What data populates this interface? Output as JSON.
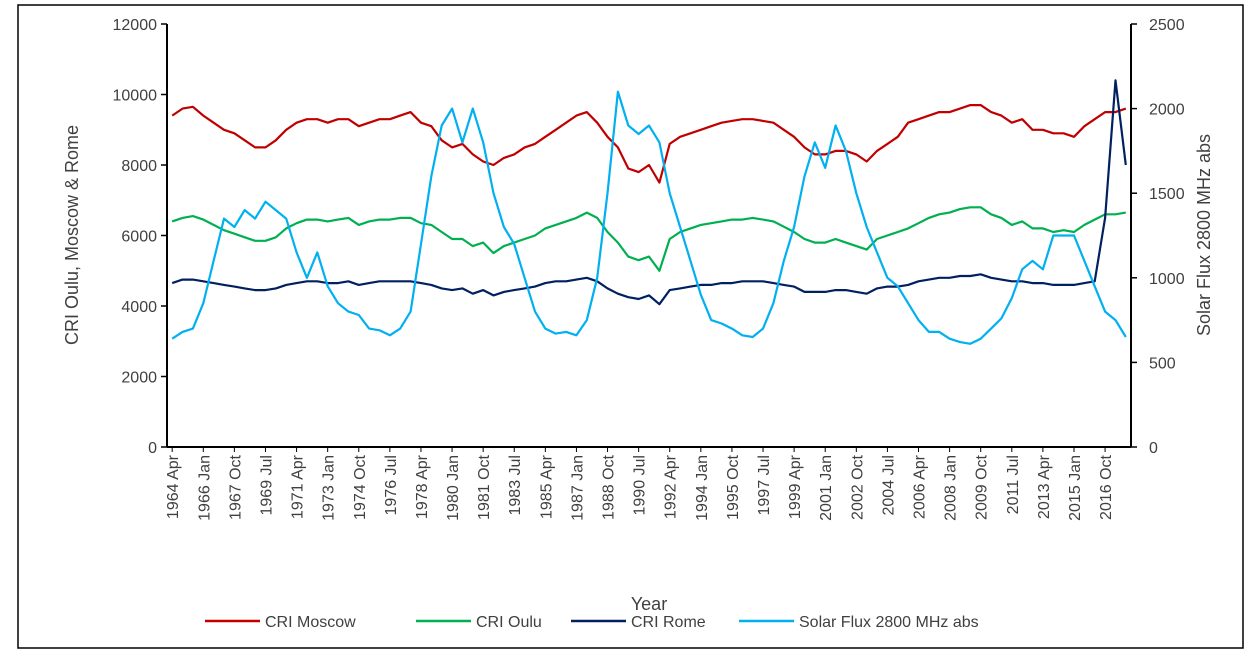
{
  "chart_data": {
    "type": "line",
    "x_label": "Year",
    "y_label": "CRI Oulu, Moscow & Rome",
    "y2_label": "Solar Flux 2800 MHz abs",
    "categories": [
      "1964 Apr",
      null,
      null,
      "1966 Jan",
      null,
      null,
      "1967 Oct",
      null,
      null,
      "1969 Jul",
      null,
      null,
      "1971 Apr",
      null,
      null,
      "1973 Jan",
      null,
      null,
      "1974 Oct",
      null,
      null,
      "1976 Jul",
      null,
      null,
      "1978 Apr",
      null,
      null,
      "1980 Jan",
      null,
      null,
      "1981 Oct",
      null,
      null,
      "1983 Jul",
      null,
      null,
      "1985 Apr",
      null,
      null,
      "1987 Jan",
      null,
      null,
      "1988 Oct",
      null,
      null,
      "1990 Jul",
      null,
      null,
      "1992 Apr",
      null,
      null,
      "1994 Jan",
      null,
      null,
      "1995 Oct",
      null,
      null,
      "1997 Jul",
      null,
      null,
      "1999 Apr",
      null,
      null,
      "2001 Jan",
      null,
      null,
      "2002 Oct",
      null,
      null,
      "2004 Jul",
      null,
      null,
      "2006 Apr",
      null,
      null,
      "2008 Jan",
      null,
      null,
      "2009 Oct",
      null,
      null,
      "2011 Jul",
      null,
      null,
      "2013 Apr",
      null,
      null,
      "2015 Jan",
      null,
      null,
      "2016 Oct",
      null,
      null
    ],
    "ylim": [
      0,
      12000
    ],
    "yticks": [
      0,
      2000,
      4000,
      6000,
      8000,
      10000,
      12000
    ],
    "y2lim": [
      0,
      2500
    ],
    "y2ticks": [
      0,
      500,
      1000,
      1500,
      2000,
      2500
    ],
    "series": [
      {
        "name": "CRI Moscow",
        "color": "#c00000",
        "values": [
          9400,
          9600,
          9650,
          9400,
          9200,
          9000,
          8900,
          8700,
          8500,
          8500,
          8700,
          9000,
          9200,
          9300,
          9300,
          9200,
          9300,
          9300,
          9100,
          9200,
          9300,
          9300,
          9400,
          9500,
          9200,
          9100,
          8700,
          8500,
          8600,
          8300,
          8100,
          8000,
          8200,
          8300,
          8500,
          8600,
          8800,
          9000,
          9200,
          9400,
          9500,
          9200,
          8800,
          8500,
          7900,
          7800,
          8000,
          7500,
          8600,
          8800,
          8900,
          9000,
          9100,
          9200,
          9250,
          9300,
          9300,
          9250,
          9200,
          9000,
          8800,
          8500,
          8300,
          8300,
          8400,
          8400,
          8300,
          8100,
          8400,
          8600,
          8800,
          9200,
          9300,
          9400,
          9500,
          9500,
          9600,
          9700,
          9700,
          9500,
          9400,
          9200,
          9300,
          9000,
          9000,
          8900,
          8900,
          8800,
          9100,
          9300,
          9500,
          9500,
          9600
        ]
      },
      {
        "name": "CRI Oulu",
        "color": "#00b050",
        "values": [
          6400,
          6500,
          6550,
          6450,
          6300,
          6150,
          6050,
          5950,
          5850,
          5850,
          5950,
          6200,
          6350,
          6450,
          6450,
          6400,
          6450,
          6500,
          6300,
          6400,
          6450,
          6450,
          6500,
          6500,
          6350,
          6300,
          6100,
          5900,
          5900,
          5700,
          5800,
          5500,
          5700,
          5800,
          5900,
          6000,
          6200,
          6300,
          6400,
          6500,
          6650,
          6500,
          6100,
          5800,
          5400,
          5300,
          5400,
          5000,
          5900,
          6100,
          6200,
          6300,
          6350,
          6400,
          6450,
          6450,
          6500,
          6450,
          6400,
          6250,
          6100,
          5900,
          5800,
          5800,
          5900,
          5800,
          5700,
          5600,
          5900,
          6000,
          6100,
          6200,
          6350,
          6500,
          6600,
          6650,
          6750,
          6800,
          6800,
          6600,
          6500,
          6300,
          6400,
          6200,
          6200,
          6100,
          6150,
          6100,
          6300,
          6450,
          6600,
          6600,
          6650
        ]
      },
      {
        "name": "CRI Rome",
        "color": "#002060",
        "values": [
          4650,
          4750,
          4750,
          4700,
          4650,
          4600,
          4550,
          4500,
          4450,
          4450,
          4500,
          4600,
          4650,
          4700,
          4700,
          4650,
          4650,
          4700,
          4600,
          4650,
          4700,
          4700,
          4700,
          4700,
          4650,
          4600,
          4500,
          4450,
          4500,
          4350,
          4450,
          4300,
          4400,
          4450,
          4500,
          4550,
          4650,
          4700,
          4700,
          4750,
          4800,
          4700,
          4500,
          4350,
          4250,
          4200,
          4300,
          4050,
          4450,
          4500,
          4550,
          4600,
          4600,
          4650,
          4650,
          4700,
          4700,
          4700,
          4650,
          4600,
          4550,
          4400,
          4400,
          4400,
          4450,
          4450,
          4400,
          4350,
          4500,
          4550,
          4550,
          4600,
          4700,
          4750,
          4800,
          4800,
          4850,
          4850,
          4900,
          4800,
          4750,
          4700,
          4700,
          4650,
          4650,
          4600,
          4600,
          4600,
          4650,
          4700,
          6500,
          10400,
          8000
        ]
      },
      {
        "name": "Solar Flux 2800 MHz abs",
        "color": "#00b0f0",
        "axis": "y2",
        "values": [
          640,
          680,
          700,
          850,
          1100,
          1350,
          1300,
          1400,
          1350,
          1450,
          1400,
          1350,
          1150,
          1000,
          1150,
          950,
          850,
          800,
          780,
          700,
          690,
          660,
          700,
          800,
          1200,
          1600,
          1900,
          2000,
          1800,
          2000,
          1800,
          1500,
          1300,
          1200,
          1000,
          800,
          700,
          670,
          680,
          660,
          750,
          1000,
          1500,
          2100,
          1900,
          1850,
          1900,
          1800,
          1500,
          1300,
          1100,
          900,
          750,
          730,
          700,
          660,
          650,
          700,
          850,
          1100,
          1300,
          1600,
          1800,
          1650,
          1900,
          1750,
          1500,
          1300,
          1150,
          1000,
          950,
          850,
          750,
          680,
          680,
          640,
          620,
          610,
          640,
          700,
          760,
          880,
          1050,
          1100,
          1050,
          1250,
          1250,
          1250,
          1100,
          950,
          800,
          750,
          650
        ]
      }
    ]
  }
}
